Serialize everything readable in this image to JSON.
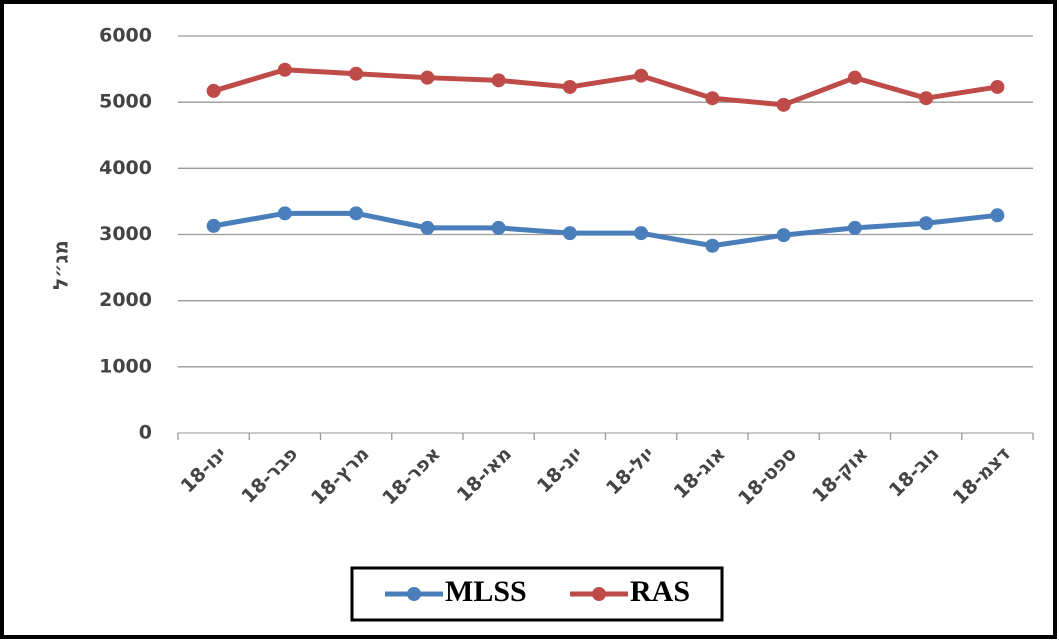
{
  "chart_data": {
    "type": "line",
    "y_label": "מג״ל",
    "categories": [
      "ינו-18",
      "פבר-18",
      "מרץ-18",
      "אפר-18",
      "מאי-18",
      "יונ-18",
      "יול-18",
      "אוג-18",
      "ספט-18",
      "אוק-18",
      "נוב-18",
      "דצמ-18"
    ],
    "series": [
      {
        "name": "MLSS",
        "color": "#4a7ebb",
        "values": [
          3130,
          3320,
          3320,
          3100,
          3100,
          3020,
          3020,
          2830,
          2990,
          3100,
          3170,
          3290
        ]
      },
      {
        "name": "RAS",
        "color": "#be4b48",
        "values": [
          5170,
          5490,
          5430,
          5370,
          5330,
          5230,
          5400,
          5060,
          4960,
          5370,
          5060,
          5230
        ]
      }
    ],
    "ylim": [
      0,
      6000
    ],
    "yticks": [
      0,
      1000,
      2000,
      3000,
      4000,
      5000,
      6000
    ],
    "grid": true,
    "legend": "bottom"
  }
}
